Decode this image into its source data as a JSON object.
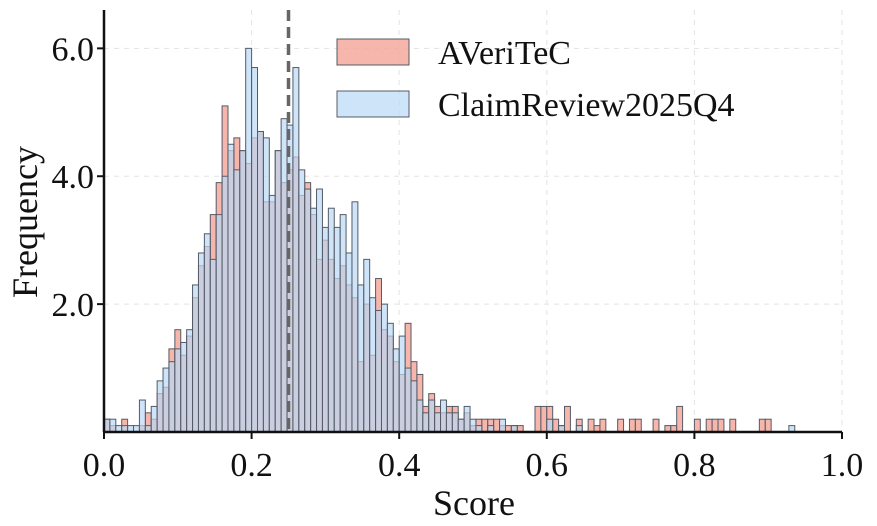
{
  "chart_data": {
    "type": "bar",
    "subtype": "overlaid-histogram",
    "title": "",
    "xlabel": "Score",
    "ylabel": "Frequency",
    "xlim": [
      0.0,
      1.0
    ],
    "ylim": [
      0.0,
      6.6
    ],
    "x_ticks": [
      "0.0",
      "0.2",
      "0.4",
      "0.6",
      "0.8",
      "1.0"
    ],
    "x_tick_values": [
      0.0,
      0.2,
      0.4,
      0.6,
      0.8,
      1.0
    ],
    "y_ticks": [
      "2.0",
      "4.0",
      "6.0"
    ],
    "y_tick_values": [
      2.0,
      4.0,
      6.0
    ],
    "bin_width": 0.008,
    "grid": true,
    "legend_position": "top-right",
    "reference_line": {
      "x": 0.25,
      "style": "dashed",
      "color": "#666666"
    },
    "series": [
      {
        "name": "AVeriTeC",
        "color": "#f4a99d",
        "bins": [
          [
            0.0,
            0.2
          ],
          [
            0.008,
            0.1
          ],
          [
            0.024,
            0.2
          ],
          [
            0.048,
            0.1
          ],
          [
            0.056,
            0.3
          ],
          [
            0.064,
            0.2
          ],
          [
            0.072,
            0.6
          ],
          [
            0.08,
            0.7
          ],
          [
            0.088,
            1.3
          ],
          [
            0.096,
            1.6
          ],
          [
            0.104,
            1.2
          ],
          [
            0.112,
            1.5
          ],
          [
            0.12,
            2.1
          ],
          [
            0.128,
            2.6
          ],
          [
            0.136,
            2.9
          ],
          [
            0.144,
            3.4
          ],
          [
            0.152,
            3.9
          ],
          [
            0.16,
            5.1
          ],
          [
            0.168,
            4.4
          ],
          [
            0.176,
            4.6
          ],
          [
            0.184,
            4.4
          ],
          [
            0.192,
            4.2
          ],
          [
            0.2,
            4.6
          ],
          [
            0.208,
            4.7
          ],
          [
            0.216,
            3.6
          ],
          [
            0.224,
            3.6
          ],
          [
            0.232,
            4.4
          ],
          [
            0.24,
            3.9
          ],
          [
            0.248,
            4.1
          ],
          [
            0.256,
            4.3
          ],
          [
            0.264,
            3.7
          ],
          [
            0.272,
            3.9
          ],
          [
            0.28,
            3.4
          ],
          [
            0.288,
            2.7
          ],
          [
            0.296,
            3.0
          ],
          [
            0.304,
            2.7
          ],
          [
            0.312,
            2.4
          ],
          [
            0.32,
            2.6
          ],
          [
            0.328,
            2.3
          ],
          [
            0.336,
            2.1
          ],
          [
            0.344,
            1.1
          ],
          [
            0.352,
            2.0
          ],
          [
            0.36,
            1.2
          ],
          [
            0.368,
            2.4
          ],
          [
            0.376,
            1.6
          ],
          [
            0.384,
            1.5
          ],
          [
            0.392,
            1.1
          ],
          [
            0.4,
            0.9
          ],
          [
            0.408,
            1.7
          ],
          [
            0.416,
            1.1
          ],
          [
            0.424,
            0.9
          ],
          [
            0.432,
            0.4
          ],
          [
            0.44,
            0.6
          ],
          [
            0.448,
            0.4
          ],
          [
            0.456,
            0.3
          ],
          [
            0.464,
            0.4
          ],
          [
            0.472,
            0.4
          ],
          [
            0.48,
            0.2
          ],
          [
            0.488,
            0.3
          ],
          [
            0.496,
            0.1
          ],
          [
            0.504,
            0.2
          ],
          [
            0.512,
            0.2
          ],
          [
            0.52,
            0.2
          ],
          [
            0.528,
            0.2
          ],
          [
            0.536,
            0.1
          ],
          [
            0.544,
            0.1
          ],
          [
            0.552,
            0.1
          ],
          [
            0.56,
            0.1
          ],
          [
            0.584,
            0.4
          ],
          [
            0.592,
            0.4
          ],
          [
            0.6,
            0.4
          ],
          [
            0.608,
            0.2
          ],
          [
            0.616,
            0.1
          ],
          [
            0.624,
            0.4
          ],
          [
            0.64,
            0.2
          ],
          [
            0.656,
            0.2
          ],
          [
            0.664,
            0.1
          ],
          [
            0.672,
            0.2
          ],
          [
            0.696,
            0.2
          ],
          [
            0.712,
            0.2
          ],
          [
            0.72,
            0.2
          ],
          [
            0.744,
            0.2
          ],
          [
            0.76,
            0.1
          ],
          [
            0.768,
            0.1
          ],
          [
            0.776,
            0.4
          ],
          [
            0.8,
            0.2
          ],
          [
            0.816,
            0.2
          ],
          [
            0.824,
            0.2
          ],
          [
            0.832,
            0.2
          ],
          [
            0.848,
            0.2
          ],
          [
            0.888,
            0.2
          ],
          [
            0.896,
            0.2
          ]
        ]
      },
      {
        "name": "ClaimReview2025Q4",
        "color": "#b9d9f5",
        "bins": [
          [
            0.0,
            0.2
          ],
          [
            0.008,
            0.2
          ],
          [
            0.016,
            0.1
          ],
          [
            0.024,
            0.1
          ],
          [
            0.032,
            0.1
          ],
          [
            0.04,
            0.1
          ],
          [
            0.048,
            0.5
          ],
          [
            0.056,
            0.1
          ],
          [
            0.064,
            0.4
          ],
          [
            0.072,
            0.8
          ],
          [
            0.08,
            1.0
          ],
          [
            0.088,
            1.1
          ],
          [
            0.096,
            1.3
          ],
          [
            0.104,
            1.4
          ],
          [
            0.112,
            1.6
          ],
          [
            0.12,
            2.3
          ],
          [
            0.128,
            2.8
          ],
          [
            0.136,
            3.1
          ],
          [
            0.144,
            2.7
          ],
          [
            0.152,
            3.4
          ],
          [
            0.16,
            4.0
          ],
          [
            0.168,
            4.5
          ],
          [
            0.176,
            4.1
          ],
          [
            0.184,
            4.4
          ],
          [
            0.192,
            6.0
          ],
          [
            0.2,
            5.7
          ],
          [
            0.208,
            4.7
          ],
          [
            0.216,
            4.6
          ],
          [
            0.224,
            3.7
          ],
          [
            0.232,
            4.4
          ],
          [
            0.24,
            4.9
          ],
          [
            0.248,
            4.8
          ],
          [
            0.256,
            5.7
          ],
          [
            0.264,
            4.1
          ],
          [
            0.272,
            3.8
          ],
          [
            0.28,
            3.5
          ],
          [
            0.288,
            3.8
          ],
          [
            0.296,
            3.2
          ],
          [
            0.304,
            3.5
          ],
          [
            0.312,
            3.2
          ],
          [
            0.32,
            3.4
          ],
          [
            0.328,
            2.8
          ],
          [
            0.336,
            3.6
          ],
          [
            0.344,
            2.3
          ],
          [
            0.352,
            2.7
          ],
          [
            0.36,
            2.1
          ],
          [
            0.368,
            1.9
          ],
          [
            0.376,
            2.0
          ],
          [
            0.384,
            1.7
          ],
          [
            0.392,
            1.3
          ],
          [
            0.4,
            1.5
          ],
          [
            0.408,
            1.0
          ],
          [
            0.416,
            0.8
          ],
          [
            0.424,
            0.5
          ],
          [
            0.432,
            0.3
          ],
          [
            0.44,
            0.5
          ],
          [
            0.448,
            0.3
          ],
          [
            0.456,
            0.5
          ],
          [
            0.464,
            0.3
          ],
          [
            0.472,
            0.3
          ],
          [
            0.48,
            0.2
          ],
          [
            0.488,
            0.4
          ],
          [
            0.496,
            0.2
          ],
          [
            0.504,
            0.1
          ],
          [
            0.52,
            0.1
          ],
          [
            0.536,
            0.2
          ],
          [
            0.552,
            0.1
          ],
          [
            0.6,
            0.2
          ],
          [
            0.616,
            0.1
          ],
          [
            0.64,
            0.1
          ],
          [
            0.928,
            0.1
          ]
        ]
      }
    ]
  }
}
